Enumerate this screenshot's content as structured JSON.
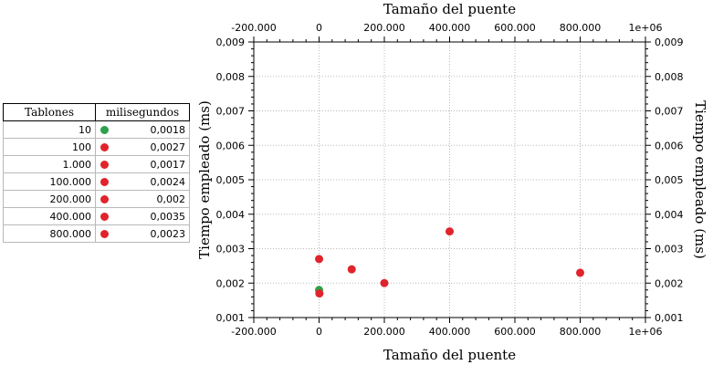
{
  "table": {
    "headers": [
      "Tablones",
      "milisegundos"
    ],
    "rows": [
      {
        "n": "10",
        "ms": "0,0018",
        "color": "#2ca24a"
      },
      {
        "n": "100",
        "ms": "0,0027",
        "color": "#e0242b"
      },
      {
        "n": "1.000",
        "ms": "0,0017",
        "color": "#e0242b"
      },
      {
        "n": "100.000",
        "ms": "0,0024",
        "color": "#e0242b"
      },
      {
        "n": "200.000",
        "ms": "0,002",
        "color": "#e0242b"
      },
      {
        "n": "400.000",
        "ms": "0,0035",
        "color": "#e0242b"
      },
      {
        "n": "800.000",
        "ms": "0,0023",
        "color": "#e0242b"
      }
    ]
  },
  "chart_data": {
    "type": "scatter",
    "title": "",
    "xlabel": "Tamaño del puente",
    "x2label": "Tamaño del puente",
    "ylabel": "Tiempo empleado (ms)",
    "y2label": "Tiempo empleado (ms)",
    "xlim": [
      -200000,
      1000000
    ],
    "ylim": [
      0.001,
      0.009
    ],
    "xticks": [
      -200000,
      0,
      200000,
      400000,
      600000,
      800000,
      1000000
    ],
    "xtick_labels": [
      "-200.000",
      "0",
      "200.000",
      "400.000",
      "600.000",
      "800.000",
      "1e+06"
    ],
    "yticks": [
      0.001,
      0.002,
      0.003,
      0.004,
      0.005,
      0.006,
      0.007,
      0.008,
      0.009
    ],
    "ytick_labels": [
      "0,001",
      "0,002",
      "0,003",
      "0,004",
      "0,005",
      "0,006",
      "0,007",
      "0,008",
      "0,009"
    ],
    "grid": true,
    "points": [
      {
        "x": 10,
        "y": 0.0018,
        "color": "#2ca24a"
      },
      {
        "x": 100,
        "y": 0.0027,
        "color": "#e0242b"
      },
      {
        "x": 1000,
        "y": 0.0017,
        "color": "#e0242b"
      },
      {
        "x": 100000,
        "y": 0.0024,
        "color": "#e0242b"
      },
      {
        "x": 200000,
        "y": 0.002,
        "color": "#e0242b"
      },
      {
        "x": 400000,
        "y": 0.0035,
        "color": "#e0242b"
      },
      {
        "x": 800000,
        "y": 0.0023,
        "color": "#e0242b"
      }
    ]
  }
}
